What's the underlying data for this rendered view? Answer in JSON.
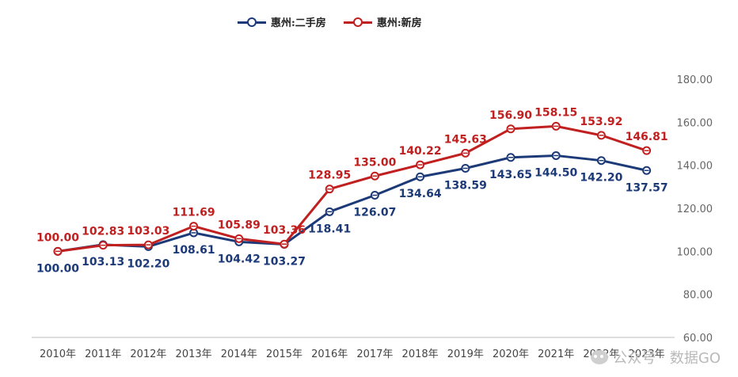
{
  "legend": {
    "second_hand": "惠州:二手房",
    "new_house": "惠州:新房"
  },
  "watermark": {
    "account": "公众号",
    "separator": "·",
    "name": "数据GO"
  },
  "colors": {
    "second_hand": "#1c3a78",
    "new_house": "#c0201f",
    "axis_text": "#666666",
    "baseline": "#bfbfbf"
  },
  "chart_data": {
    "type": "line",
    "categories": [
      "2010年",
      "2011年",
      "2012年",
      "2013年",
      "2014年",
      "2015年",
      "2016年",
      "2017年",
      "2018年",
      "2019年",
      "2020年",
      "2021年",
      "2022年",
      "2023年"
    ],
    "series": [
      {
        "name": "惠州:二手房",
        "values": [
          100.0,
          103.13,
          102.2,
          108.61,
          104.42,
          103.27,
          118.41,
          126.07,
          134.64,
          138.59,
          143.65,
          144.5,
          142.2,
          137.57
        ]
      },
      {
        "name": "惠州:新房",
        "values": [
          100.0,
          102.83,
          103.03,
          111.69,
          105.89,
          103.36,
          128.95,
          135.0,
          140.22,
          145.63,
          156.9,
          158.15,
          153.92,
          146.81
        ]
      }
    ],
    "y_axis": {
      "position": "right",
      "min": 60,
      "max": 180,
      "ticks": [
        "60.00",
        "80.00",
        "100.00",
        "120.00",
        "140.00",
        "160.00",
        "180.00"
      ]
    },
    "label_format": "2 decimals",
    "grid": false,
    "legend_position": "top-left"
  }
}
